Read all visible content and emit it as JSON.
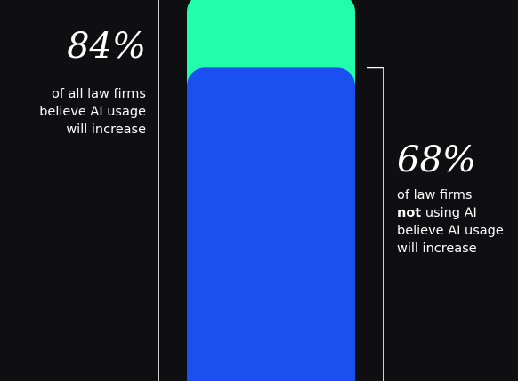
{
  "chart_data": {
    "type": "bar",
    "title": "",
    "series": [
      {
        "values": [
          84
        ]
      },
      {
        "values": [
          68
        ]
      }
    ],
    "ylim": [
      0,
      100
    ],
    "annotations": [
      {
        "value_label": "84%",
        "lines": [
          "of all law firms",
          "believe AI usage",
          "will increase"
        ]
      },
      {
        "value_label": "68%",
        "lines": [
          {
            "bold": "not",
            "rest": " using AI"
          }
        ],
        "line1": "of law firms",
        "line3": "believe AI usage",
        "line4": "will increase"
      }
    ]
  },
  "colors": {
    "background": "#0f0e11",
    "bar_all_firms": "#22fdab",
    "bar_not_using_ai": "#1a4ff0",
    "bracket": "#ffffff"
  }
}
